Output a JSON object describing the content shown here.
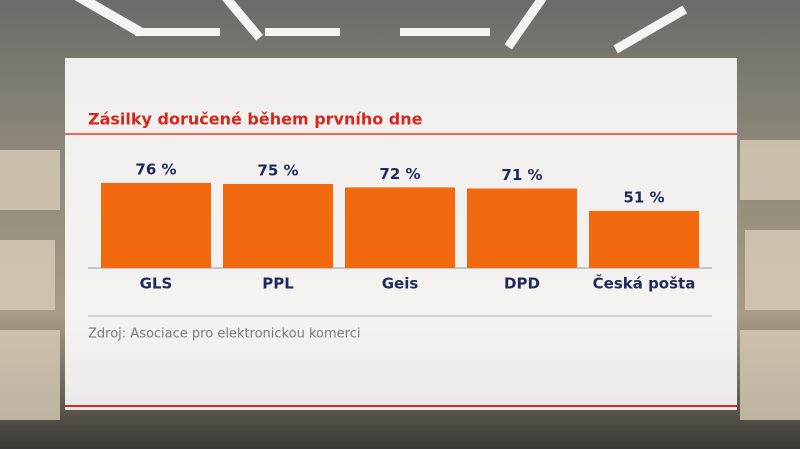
{
  "chart_data": {
    "type": "bar",
    "title": "Zásilky doručené během prvního dne",
    "categories": [
      "GLS",
      "PPL",
      "Geis",
      "DPD",
      "Česká pošta"
    ],
    "values": [
      76,
      75,
      72,
      71,
      51
    ],
    "value_labels": [
      "76 %",
      "75 %",
      "72 %",
      "71 %",
      "51 %"
    ],
    "color": "#f2690f",
    "source": "Zdroj: Asociace pro elektronickou komerci"
  }
}
